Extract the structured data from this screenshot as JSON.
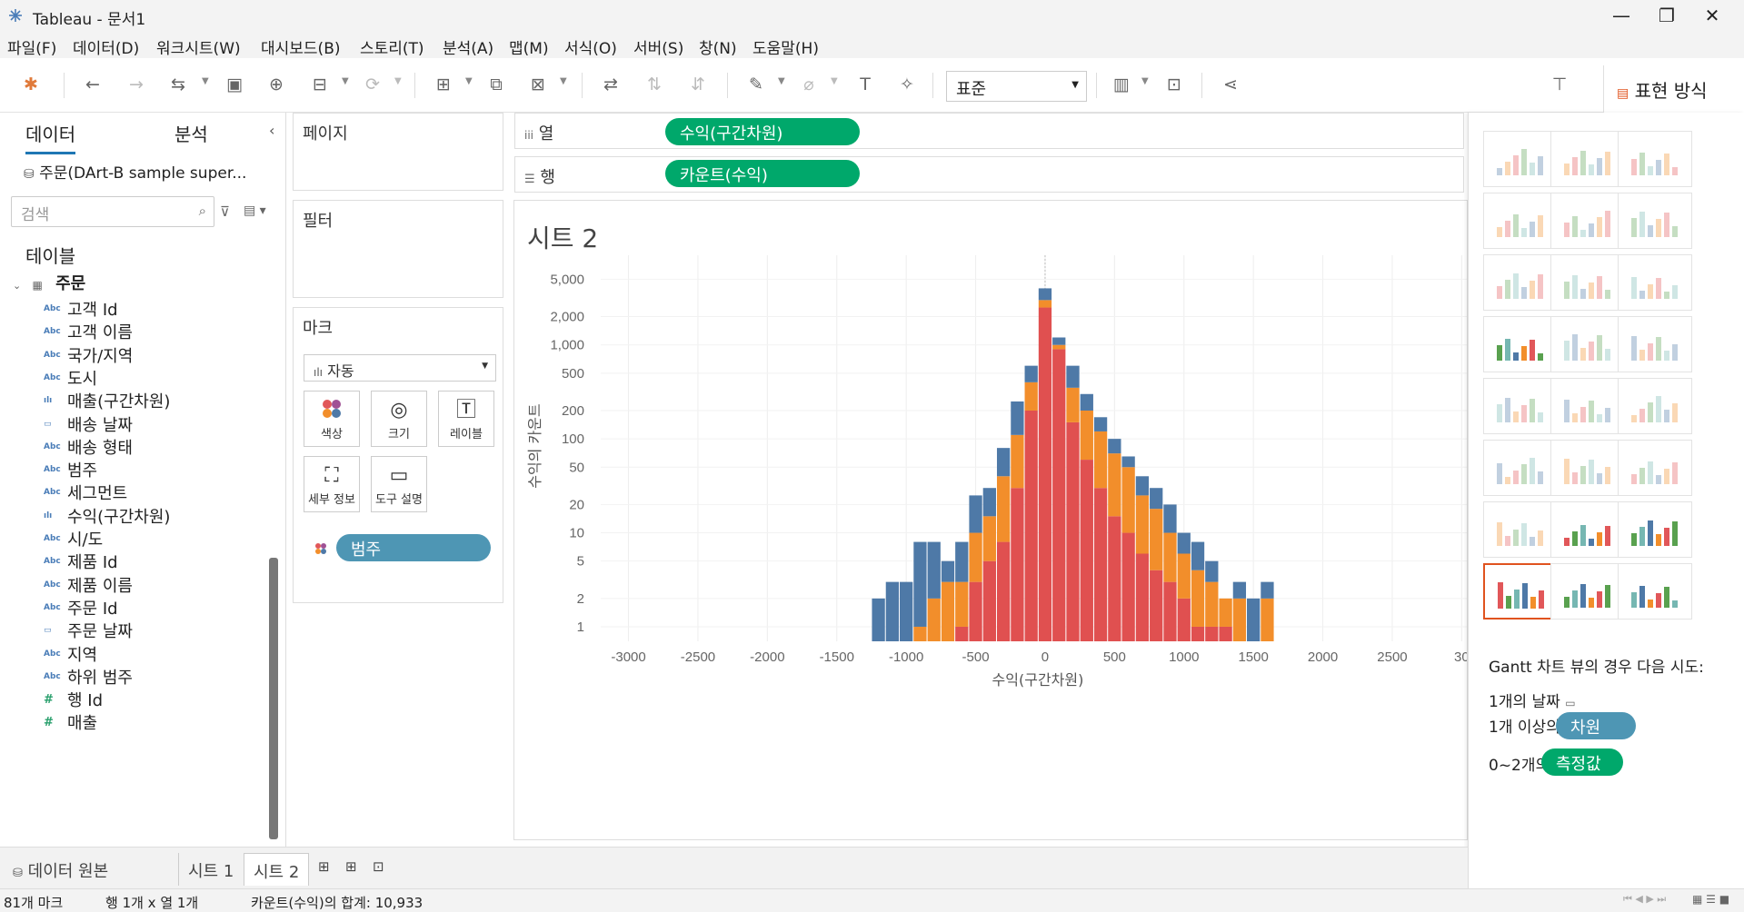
{
  "app": {
    "title": "Tableau - 문서1"
  },
  "menu": [
    "파일(F)",
    "데이터(D)",
    "워크시트(W)",
    "대시보드(B)",
    "스토리(T)",
    "분석(A)",
    "맵(M)",
    "서식(O)",
    "서버(S)",
    "창(N)",
    "도움말(H)"
  ],
  "toolbar": {
    "fit_label": "표준",
    "showme_label": "표현 방식"
  },
  "left_panel": {
    "tab_data": "데이터",
    "tab_analysis": "분석",
    "datasource": "주문(DArt-B sample super...",
    "search_placeholder": "검색",
    "tables_label": "테이블",
    "table_name": "주문",
    "fields": [
      {
        "type": "Abc",
        "name": "고객 Id"
      },
      {
        "type": "Abc",
        "name": "고객 이름"
      },
      {
        "type": "Abc",
        "name": "국가/지역"
      },
      {
        "type": "Abc",
        "name": "도시"
      },
      {
        "type": "bins",
        "name": "매출(구간차원)"
      },
      {
        "type": "date",
        "name": "배송 날짜"
      },
      {
        "type": "Abc",
        "name": "배송 형태"
      },
      {
        "type": "Abc",
        "name": "범주"
      },
      {
        "type": "Abc",
        "name": "세그먼트"
      },
      {
        "type": "bins",
        "name": "수익(구간차원)"
      },
      {
        "type": "Abc",
        "name": "시/도"
      },
      {
        "type": "Abc",
        "name": "제품 Id"
      },
      {
        "type": "Abc",
        "name": "제품 이름"
      },
      {
        "type": "Abc",
        "name": "주문 Id"
      },
      {
        "type": "date",
        "name": "주문 날짜"
      },
      {
        "type": "Abc",
        "name": "지역"
      },
      {
        "type": "Abc",
        "name": "하위 범주"
      },
      {
        "type": "#",
        "name": "행 Id"
      },
      {
        "type": "#",
        "name": "매출"
      }
    ]
  },
  "cards": {
    "pages": "페이지",
    "filters": "필터",
    "marks": "마크",
    "mark_type": "자동",
    "mark_buttons": [
      "색상",
      "크기",
      "레이블",
      "세부 정보",
      "도구 설명"
    ],
    "color_pill": "범주"
  },
  "shelves": {
    "columns_label": "열",
    "rows_label": "행",
    "columns_pill": "수익(구간차원)",
    "rows_pill": "카운트(수익)"
  },
  "sheet": {
    "title": "시트 2"
  },
  "chart_data": {
    "type": "bar",
    "stacked": true,
    "y_scale": "log",
    "xlabel": "수익(구간차원)",
    "ylabel": "수익의 카운트",
    "x_ticks": [
      "-3000",
      "-2500",
      "-2000",
      "-1500",
      "-1000",
      "-500",
      "0",
      "500",
      "1000",
      "1500",
      "2000",
      "2500",
      "30"
    ],
    "y_ticks": [
      "1",
      "2",
      "5",
      "10",
      "20",
      "50",
      "100",
      "200",
      "500",
      "1,000",
      "2,000",
      "5,000"
    ],
    "bin_width": 100,
    "colors": {
      "sum_bottom": "#e05050",
      "middle": "#f28e2b",
      "top": "#4e79a7"
    },
    "bins": [
      {
        "x": -1200,
        "t": [
          0,
          0,
          2
        ]
      },
      {
        "x": -1100,
        "t": [
          0,
          0,
          3
        ]
      },
      {
        "x": -1000,
        "t": [
          0,
          0,
          3
        ]
      },
      {
        "x": -900,
        "t": [
          0,
          1,
          8
        ]
      },
      {
        "x": -800,
        "t": [
          0,
          2,
          8
        ]
      },
      {
        "x": -700,
        "t": [
          0,
          3,
          5
        ]
      },
      {
        "x": -600,
        "t": [
          1,
          3,
          8
        ]
      },
      {
        "x": -500,
        "t": [
          3,
          10,
          25
        ]
      },
      {
        "x": -400,
        "t": [
          5,
          15,
          30
        ]
      },
      {
        "x": -300,
        "t": [
          8,
          40,
          80
        ]
      },
      {
        "x": -200,
        "t": [
          30,
          110,
          250
        ]
      },
      {
        "x": -100,
        "t": [
          200,
          400,
          600
        ]
      },
      {
        "x": 0,
        "t": [
          2500,
          3000,
          4000
        ]
      },
      {
        "x": 100,
        "t": [
          900,
          1000,
          1200
        ]
      },
      {
        "x": 200,
        "t": [
          150,
          350,
          600
        ]
      },
      {
        "x": 300,
        "t": [
          60,
          200,
          300
        ]
      },
      {
        "x": 400,
        "t": [
          30,
          120,
          170
        ]
      },
      {
        "x": 500,
        "t": [
          15,
          70,
          100
        ]
      },
      {
        "x": 600,
        "t": [
          10,
          50,
          65
        ]
      },
      {
        "x": 700,
        "t": [
          6,
          25,
          40
        ]
      },
      {
        "x": 800,
        "t": [
          4,
          18,
          30
        ]
      },
      {
        "x": 900,
        "t": [
          3,
          10,
          20
        ]
      },
      {
        "x": 1000,
        "t": [
          2,
          6,
          10
        ]
      },
      {
        "x": 1100,
        "t": [
          1,
          4,
          8
        ]
      },
      {
        "x": 1200,
        "t": [
          1,
          3,
          5
        ]
      },
      {
        "x": 1300,
        "t": [
          1,
          2,
          2
        ]
      },
      {
        "x": 1400,
        "t": [
          0,
          2,
          3
        ]
      },
      {
        "x": 1500,
        "t": [
          0,
          0,
          2
        ]
      },
      {
        "x": 1600,
        "t": [
          0,
          2,
          3
        ]
      }
    ]
  },
  "showme": {
    "hint_title": "Gantt 차트 뷰의 경우 다음 시도:",
    "hint_dates": "1개의 날짜",
    "hint_dims": "1개 이상의",
    "hint_dims_pill": "차원",
    "hint_meas": "0~2개의",
    "hint_meas_pill": "측정값"
  },
  "tabs": {
    "datasource": "데이터 원본",
    "sheet1": "시트 1",
    "sheet2": "시트 2"
  },
  "status": {
    "marks": "81개 마크",
    "dims": "행 1개  x  열 1개",
    "sum": "카운트(수익)의 합계: 10,933"
  }
}
